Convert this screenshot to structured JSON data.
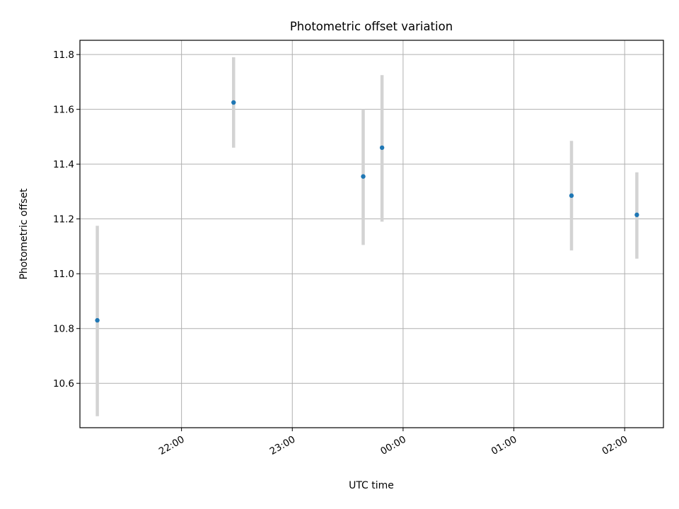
{
  "chart_data": {
    "type": "scatter",
    "title": "Photometric offset variation",
    "xlabel": "UTC time",
    "ylabel": "Photometric offset",
    "x_tick_labels": [
      "22:00",
      "23:00",
      "00:00",
      "01:00",
      "02:00"
    ],
    "x_tick_hours": [
      22,
      23,
      24,
      25,
      26
    ],
    "y_ticks": [
      10.6,
      10.8,
      11.0,
      11.2,
      11.4,
      11.6,
      11.8
    ],
    "y_tick_labels": [
      "10.6",
      "10.8",
      "11.0",
      "11.2",
      "11.4",
      "11.6",
      "11.8"
    ],
    "xlim_hours": [
      21.083,
      26.35
    ],
    "ylim": [
      10.438,
      11.852
    ],
    "grid": true,
    "points": [
      {
        "time": "21:14",
        "hour": 21.24,
        "y": 10.83,
        "ylow": 10.48,
        "yhigh": 11.175
      },
      {
        "time": "22:28",
        "hour": 22.47,
        "y": 11.625,
        "ylow": 11.46,
        "yhigh": 11.79
      },
      {
        "time": "23:38",
        "hour": 23.64,
        "y": 11.355,
        "ylow": 11.105,
        "yhigh": 11.6
      },
      {
        "time": "23:49",
        "hour": 23.81,
        "y": 11.46,
        "ylow": 11.19,
        "yhigh": 11.725
      },
      {
        "time": "01:31",
        "hour": 25.52,
        "y": 11.285,
        "ylow": 11.085,
        "yhigh": 11.485
      },
      {
        "time": "02:07",
        "hour": 26.11,
        "y": 11.215,
        "ylow": 11.055,
        "yhigh": 11.37
      }
    ],
    "colors": {
      "point": "#1f77b4",
      "errorbar": "#d3d3d3",
      "grid": "#b0b0b0",
      "axes": "#000000"
    }
  }
}
